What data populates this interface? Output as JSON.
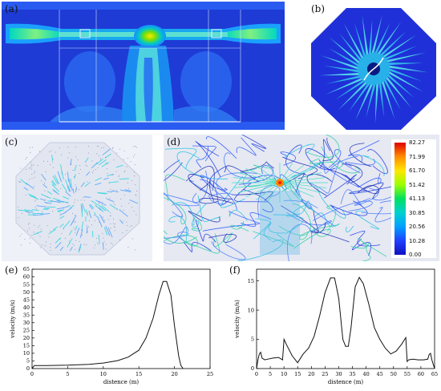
{
  "panels": {
    "a": {
      "label": "(a)"
    },
    "b": {
      "label": "(b)"
    },
    "c": {
      "label": "(c)"
    },
    "d": {
      "label": "(d)",
      "colorbar": [
        "82.27",
        "71.99",
        "61.70",
        "51.42",
        "41.13",
        "30.85",
        "20.56",
        "10.28",
        "0.00"
      ]
    },
    "e": {
      "label": "(e)"
    },
    "f": {
      "label": "(f)"
    }
  },
  "chart_data": [
    {
      "type": "line",
      "panel": "e",
      "xlabel": "distence (m)",
      "ylabel": "velocity (m/s)",
      "xlim": [
        0,
        25
      ],
      "ylim": [
        0,
        65
      ],
      "xticks": [
        0,
        5,
        10,
        15,
        20,
        25
      ],
      "yticks": [
        0,
        5,
        10,
        15,
        20,
        25,
        30,
        35,
        40,
        45,
        50,
        55,
        60,
        65
      ],
      "x": [
        0,
        0.3,
        2,
        5,
        8,
        10,
        12,
        13.5,
        15,
        16,
        17,
        17.8,
        18.4,
        18.9,
        19.5,
        20,
        20.6,
        20.9,
        21.2
      ],
      "y": [
        0,
        2,
        2,
        2.2,
        2.8,
        3.6,
        5.2,
        7.5,
        12,
        20,
        33,
        48,
        57,
        57,
        48,
        28,
        8,
        2,
        0
      ]
    },
    {
      "type": "line",
      "panel": "f",
      "xlabel": "distence (m)",
      "ylabel": "velocity (m/s)",
      "xlim": [
        0,
        65
      ],
      "ylim": [
        0,
        17
      ],
      "xticks": [
        0,
        5,
        10,
        15,
        20,
        25,
        30,
        35,
        40,
        45,
        50,
        55,
        60,
        65
      ],
      "yticks": [
        0,
        5,
        10,
        15
      ],
      "x": [
        0,
        0.5,
        1,
        1.5,
        2,
        3,
        4,
        6,
        8,
        9.5,
        10,
        11,
        13,
        15,
        17,
        19,
        21,
        23,
        25,
        27,
        28.5,
        30,
        31.5,
        32.5,
        33.5,
        34.5,
        36,
        37.5,
        39,
        41,
        43,
        45,
        47,
        49,
        51,
        53,
        54.5,
        55,
        55.5,
        57,
        59,
        61,
        62.5,
        63,
        63.5,
        64,
        65
      ],
      "y": [
        0,
        1.5,
        2.5,
        2.8,
        1.8,
        1.5,
        1.6,
        1.8,
        1.9,
        1.5,
        5,
        4,
        2.2,
        1,
        2.5,
        3.5,
        5.5,
        9,
        13,
        15.5,
        15.5,
        12,
        5,
        3.8,
        3.8,
        7,
        14,
        15.6,
        14.5,
        11,
        7,
        5,
        3.5,
        2.5,
        3,
        4.2,
        5.3,
        1.2,
        1.5,
        1.6,
        1.5,
        1.5,
        1.6,
        2.4,
        2.6,
        1.5,
        0
      ]
    }
  ]
}
